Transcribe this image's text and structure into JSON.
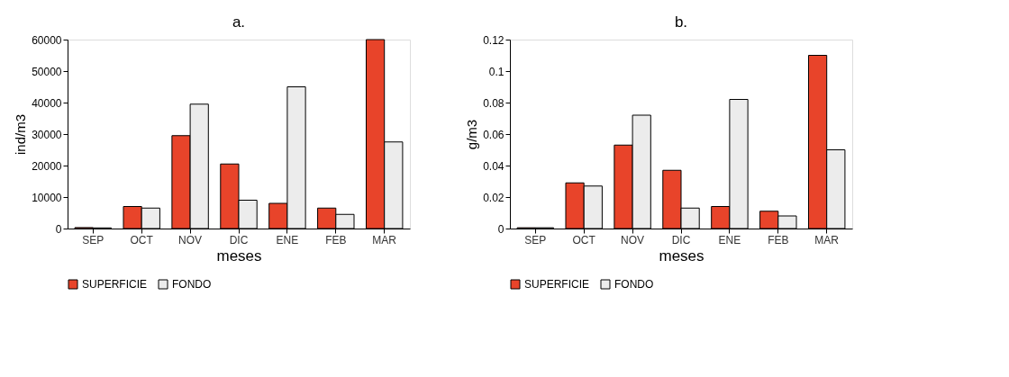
{
  "chart_data": [
    {
      "type": "bar",
      "title": "a.",
      "xlabel": "meses",
      "ylabel": "ind/m3",
      "categories": [
        "SEP",
        "OCT",
        "NOV",
        "DIC",
        "ENE",
        "FEB",
        "MAR"
      ],
      "series": [
        {
          "name": "SUPERFICIE",
          "color": "#e8442a",
          "values": [
            300,
            7000,
            29500,
            20500,
            8000,
            6500,
            60000
          ]
        },
        {
          "name": "FONDO",
          "color": "#ececec",
          "values": [
            200,
            6500,
            39500,
            9000,
            45000,
            4500,
            27500
          ]
        }
      ],
      "ylim": [
        0,
        60000
      ],
      "yticks": [
        0,
        10000,
        20000,
        30000,
        40000,
        50000,
        60000
      ],
      "grid": false,
      "legend": "bottom"
    },
    {
      "type": "bar",
      "title": "b.",
      "xlabel": "meses",
      "ylabel": "g/m3",
      "categories": [
        "SEP",
        "OCT",
        "NOV",
        "DIC",
        "ENE",
        "FEB",
        "MAR"
      ],
      "series": [
        {
          "name": "SUPERFICIE",
          "color": "#e8442a",
          "values": [
            0.0005,
            0.029,
            0.053,
            0.037,
            0.014,
            0.011,
            0.11
          ]
        },
        {
          "name": "FONDO",
          "color": "#ececec",
          "values": [
            0.0005,
            0.027,
            0.072,
            0.013,
            0.082,
            0.008,
            0.05
          ]
        }
      ],
      "ylim": [
        0,
        0.12
      ],
      "yticks": [
        0,
        0.02,
        0.04,
        0.06,
        0.08,
        0.1,
        0.12
      ],
      "grid": false,
      "legend": "bottom"
    }
  ]
}
